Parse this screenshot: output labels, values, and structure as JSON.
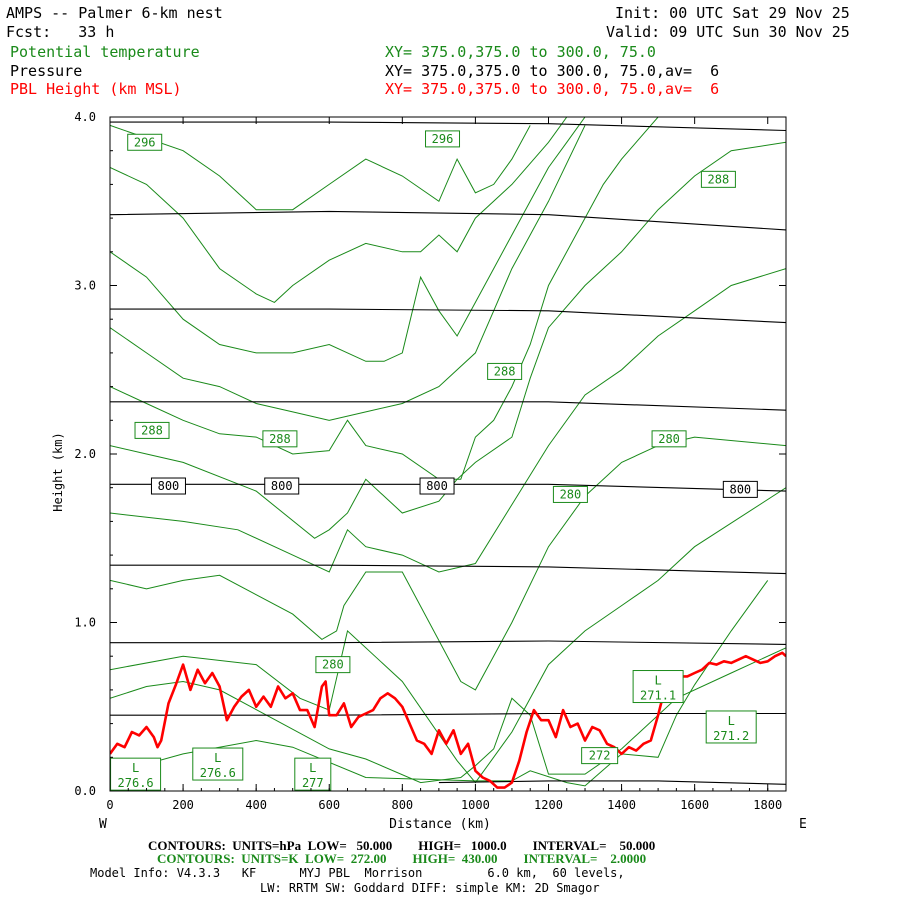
{
  "header": {
    "title": "AMPS -- Palmer 6-km nest",
    "fcst": "Fcst:   33 h",
    "init": "Init: 00 UTC Sat 29 Nov 25",
    "valid": "Valid: 09 UTC Sun 30 Nov 25",
    "field1": "Potential temperature",
    "field2": "Pressure",
    "field3": "PBL Height (km MSL)",
    "xy1": "XY= 375.0,375.0 to 300.0, 75.0",
    "xy2": "XY= 375.0,375.0 to 300.0, 75.0,av=  6",
    "xy3": "XY= 375.0,375.0 to 300.0, 75.0,av=  6"
  },
  "footer": {
    "line1": "CONTOURS:  UNITS=hPa  LOW=   50.000        HIGH=   1000.0        INTERVAL=    50.000",
    "line2": "CONTOURS:  UNITS=K  LOW=  272.00        HIGH=  430.00        INTERVAL=    2.0000",
    "line3": "Model Info: V4.3.3   KF      MYJ PBL  Morrison         6.0 km,  60 levels,",
    "line4": "LW: RRTM SW: Goddard DIFF: simple KM: 2D Smagor"
  },
  "colors": {
    "pressure": "#000000",
    "theta": "#1a8a1a",
    "pbl": "#ff0000"
  },
  "chart_data": {
    "type": "line",
    "xlabel": "Distance (km)",
    "ylabel": "Height (km)",
    "xlim": [
      0,
      1850
    ],
    "ylim": [
      0,
      4.0
    ],
    "x_ticks": [
      "0",
      "200",
      "400",
      "600",
      "800",
      "1000",
      "1200",
      "1400",
      "1600",
      "1800"
    ],
    "y_ticks": [
      "0.0",
      "1.0",
      "2.0",
      "3.0",
      "4.0"
    ],
    "left_label": "W",
    "right_label": "E",
    "pressure_contour_labels": [
      {
        "text": "800",
        "x": 160,
        "y": 1.81
      },
      {
        "text": "800",
        "x": 470,
        "y": 1.81
      },
      {
        "text": "800",
        "x": 895,
        "y": 1.81
      },
      {
        "text": "800",
        "x": 1725,
        "y": 1.79
      }
    ],
    "theta_contour_labels": [
      {
        "text": "296",
        "x": 95,
        "y": 3.85
      },
      {
        "text": "296",
        "x": 910,
        "y": 3.87
      },
      {
        "text": "288",
        "x": 1665,
        "y": 3.63
      },
      {
        "text": "288",
        "x": 1080,
        "y": 2.49
      },
      {
        "text": "288",
        "x": 115,
        "y": 2.14
      },
      {
        "text": "288",
        "x": 465,
        "y": 2.09
      },
      {
        "text": "280",
        "x": 1530,
        "y": 2.09
      },
      {
        "text": "280",
        "x": 1260,
        "y": 1.76
      },
      {
        "text": "280",
        "x": 610,
        "y": 0.75
      }
    ],
    "lows": [
      {
        "text": "L",
        "value": "276.6",
        "x": 70,
        "y": 0.1
      },
      {
        "text": "L",
        "value": "276.6",
        "x": 295,
        "y": 0.16
      },
      {
        "text": "L",
        "value": "277",
        "x": 555,
        "y": 0.1
      },
      {
        "text": "L",
        "value": "271.1",
        "x": 1500,
        "y": 0.62
      },
      {
        "text": "L",
        "value": "271.2",
        "x": 1700,
        "y": 0.38
      },
      {
        "text": "",
        "value": "272",
        "x": 1340,
        "y": 0.21
      }
    ],
    "pressure_levels": [
      {
        "x": [
          0,
          600,
          1200,
          1850
        ],
        "y": [
          3.97,
          3.97,
          3.96,
          3.92
        ]
      },
      {
        "x": [
          0,
          600,
          1200,
          1850
        ],
        "y": [
          3.42,
          3.44,
          3.42,
          3.33
        ]
      },
      {
        "x": [
          0,
          600,
          1200,
          1850
        ],
        "y": [
          2.86,
          2.86,
          2.85,
          2.78
        ]
      },
      {
        "x": [
          0,
          600,
          1200,
          1850
        ],
        "y": [
          2.31,
          2.31,
          2.31,
          2.26
        ]
      },
      {
        "x": [
          0,
          600,
          1200,
          1850
        ],
        "y": [
          1.82,
          1.82,
          1.82,
          1.78
        ]
      },
      {
        "x": [
          0,
          600,
          1200,
          1850
        ],
        "y": [
          1.34,
          1.34,
          1.33,
          1.29
        ]
      },
      {
        "x": [
          0,
          600,
          1200,
          1850
        ],
        "y": [
          0.88,
          0.88,
          0.89,
          0.87
        ]
      },
      {
        "x": [
          0,
          600,
          1200,
          1850
        ],
        "y": [
          0.45,
          0.45,
          0.46,
          0.46
        ]
      },
      {
        "x": [
          900,
          1200,
          1500,
          1850
        ],
        "y": [
          0.05,
          0.06,
          0.06,
          0.04
        ]
      }
    ],
    "theta_lines": [
      {
        "x": [
          0,
          200,
          400,
          500,
          700,
          1000,
          1100,
          1150,
          1250,
          1300,
          1400,
          1500,
          1550,
          1600,
          1700,
          1800
        ],
        "y": [
          0.1,
          0.22,
          0.3,
          0.26,
          0.08,
          0.06,
          0.06,
          0.12,
          0.05,
          0.03,
          0.22,
          0.2,
          0.45,
          0.63,
          0.95,
          1.25
        ]
      },
      {
        "x": [
          0,
          100,
          200,
          300,
          600,
          700,
          850,
          960,
          1000,
          1050,
          1100,
          1150,
          1200,
          1300,
          1400,
          1550,
          1700,
          1850
        ],
        "y": [
          0.55,
          0.62,
          0.65,
          0.6,
          0.25,
          0.19,
          0.05,
          0.08,
          0.15,
          0.25,
          0.55,
          0.45,
          0.1,
          0.1,
          0.25,
          0.55,
          0.7,
          0.85
        ]
      },
      {
        "x": [
          0,
          200,
          400,
          520,
          600,
          650,
          800,
          950,
          1000,
          1100,
          1200,
          1300,
          1400,
          1500,
          1600,
          1850
        ],
        "y": [
          0.72,
          0.8,
          0.75,
          0.55,
          0.48,
          0.95,
          0.65,
          0.18,
          0.05,
          0.35,
          0.75,
          0.95,
          1.1,
          1.25,
          1.45,
          1.8
        ]
      },
      {
        "x": [
          0,
          100,
          200,
          300,
          500,
          580,
          620,
          640,
          700,
          800,
          960,
          1000,
          1100,
          1200,
          1300,
          1400,
          1500,
          1600,
          1850
        ],
        "y": [
          1.25,
          1.2,
          1.25,
          1.28,
          1.05,
          0.9,
          0.95,
          1.1,
          1.3,
          1.3,
          0.65,
          0.6,
          1.0,
          1.45,
          1.75,
          1.95,
          2.05,
          2.1,
          2.05
        ]
      },
      {
        "x": [
          0,
          200,
          350,
          500,
          600,
          650,
          700,
          800,
          900,
          1000,
          1100,
          1200,
          1300,
          1400,
          1500,
          1600,
          1700,
          1850
        ],
        "y": [
          1.65,
          1.6,
          1.55,
          1.4,
          1.3,
          1.55,
          1.45,
          1.4,
          1.3,
          1.35,
          1.7,
          2.05,
          2.35,
          2.5,
          2.7,
          2.85,
          3.0,
          3.1
        ]
      },
      {
        "x": [
          0,
          100,
          200,
          400,
          560,
          600,
          650,
          700,
          800,
          900,
          950,
          1000,
          1100,
          1150,
          1200,
          1300,
          1400,
          1500,
          1600,
          1700,
          1850
        ],
        "y": [
          2.05,
          2.0,
          1.95,
          1.78,
          1.5,
          1.55,
          1.65,
          1.85,
          1.65,
          1.72,
          1.85,
          1.95,
          2.1,
          2.45,
          2.75,
          3.0,
          3.2,
          3.45,
          3.65,
          3.8,
          3.85
        ]
      },
      {
        "x": [
          0,
          100,
          200,
          300,
          400,
          500,
          600,
          650,
          700,
          800,
          900,
          960,
          1000,
          1050,
          1100,
          1150,
          1200,
          1300,
          1350,
          1400,
          1500
        ],
        "y": [
          2.4,
          2.3,
          2.2,
          2.12,
          2.1,
          2.0,
          2.02,
          2.2,
          2.05,
          2.0,
          1.85,
          1.85,
          2.1,
          2.2,
          2.4,
          2.65,
          3.0,
          3.4,
          3.6,
          3.75,
          4.0
        ]
      },
      {
        "x": [
          0,
          100,
          200,
          300,
          400,
          500,
          600,
          700,
          800,
          900,
          1000,
          1050,
          1100,
          1200,
          1300
        ],
        "y": [
          2.75,
          2.6,
          2.45,
          2.4,
          2.3,
          2.25,
          2.2,
          2.25,
          2.3,
          2.4,
          2.6,
          2.85,
          3.1,
          3.5,
          3.95
        ]
      },
      {
        "x": [
          0,
          100,
          200,
          300,
          400,
          500,
          600,
          700,
          750,
          800,
          850,
          900,
          950,
          1000,
          1050,
          1100,
          1150,
          1200,
          1250,
          1300
        ],
        "y": [
          3.2,
          3.05,
          2.8,
          2.65,
          2.6,
          2.6,
          2.65,
          2.55,
          2.55,
          2.6,
          3.05,
          2.85,
          2.7,
          2.9,
          3.1,
          3.3,
          3.5,
          3.7,
          3.85,
          4.0
        ]
      },
      {
        "x": [
          0,
          100,
          200,
          300,
          400,
          450,
          500,
          600,
          700,
          800,
          850,
          900,
          950,
          1000,
          1100,
          1200,
          1250
        ],
        "y": [
          3.7,
          3.6,
          3.4,
          3.1,
          2.95,
          2.9,
          3.0,
          3.15,
          3.25,
          3.2,
          3.2,
          3.3,
          3.2,
          3.4,
          3.6,
          3.85,
          4.0
        ]
      },
      {
        "x": [
          0,
          200,
          300,
          400,
          500,
          600,
          700,
          800,
          900,
          950,
          1000,
          1050,
          1100,
          1150
        ],
        "y": [
          3.95,
          3.8,
          3.65,
          3.45,
          3.45,
          3.6,
          3.75,
          3.65,
          3.5,
          3.75,
          3.55,
          3.6,
          3.75,
          3.95
        ]
      }
    ],
    "pbl_height": {
      "x": [
        0,
        20,
        40,
        60,
        80,
        100,
        120,
        130,
        140,
        160,
        180,
        200,
        220,
        240,
        260,
        280,
        300,
        320,
        340,
        360,
        380,
        400,
        420,
        440,
        460,
        480,
        500,
        520,
        540,
        560,
        580,
        590,
        600,
        620,
        640,
        660,
        680,
        700,
        720,
        740,
        760,
        780,
        800,
        820,
        840,
        860,
        880,
        900,
        920,
        940,
        960,
        980,
        1000,
        1020,
        1040,
        1060,
        1080,
        1100,
        1120,
        1140,
        1160,
        1180,
        1200,
        1220,
        1240,
        1260,
        1280,
        1300,
        1320,
        1340,
        1360,
        1380,
        1400,
        1420,
        1440,
        1460,
        1480,
        1500,
        1520,
        1540,
        1560,
        1580,
        1600,
        1620,
        1640,
        1660,
        1680,
        1700,
        1720,
        1740,
        1760,
        1780,
        1800,
        1820,
        1840,
        1850
      ],
      "y": [
        0.22,
        0.28,
        0.26,
        0.35,
        0.33,
        0.38,
        0.32,
        0.26,
        0.3,
        0.52,
        0.63,
        0.75,
        0.6,
        0.72,
        0.64,
        0.7,
        0.62,
        0.42,
        0.5,
        0.56,
        0.6,
        0.5,
        0.56,
        0.5,
        0.62,
        0.55,
        0.58,
        0.48,
        0.48,
        0.38,
        0.62,
        0.65,
        0.45,
        0.45,
        0.52,
        0.38,
        0.44,
        0.46,
        0.48,
        0.55,
        0.58,
        0.55,
        0.5,
        0.4,
        0.3,
        0.28,
        0.22,
        0.36,
        0.28,
        0.36,
        0.22,
        0.28,
        0.12,
        0.08,
        0.06,
        0.02,
        0.02,
        0.05,
        0.18,
        0.35,
        0.48,
        0.42,
        0.42,
        0.32,
        0.48,
        0.38,
        0.4,
        0.3,
        0.38,
        0.36,
        0.28,
        0.26,
        0.22,
        0.26,
        0.24,
        0.28,
        0.3,
        0.45,
        0.62,
        0.68,
        0.68,
        0.68,
        0.7,
        0.72,
        0.76,
        0.75,
        0.77,
        0.76,
        0.78,
        0.8,
        0.78,
        0.76,
        0.77,
        0.8,
        0.82,
        0.8
      ]
    }
  }
}
